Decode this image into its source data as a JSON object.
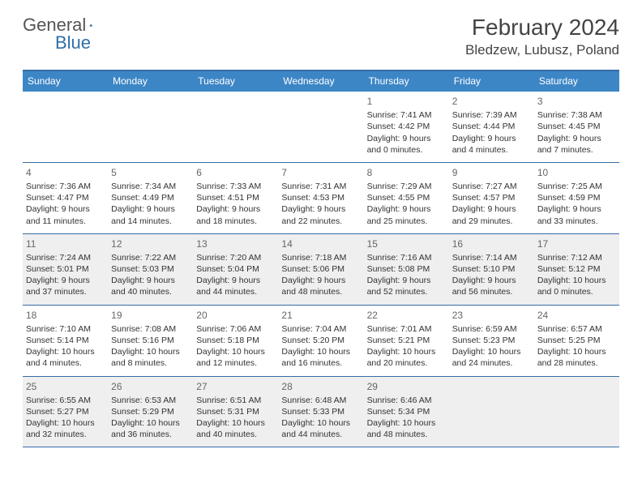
{
  "logo": {
    "text1": "General",
    "text2": "Blue"
  },
  "header": {
    "month": "February 2024",
    "location": "Bledzew, Lubusz, Poland"
  },
  "colors": {
    "header_bg": "#3d86c6",
    "header_border": "#346da6",
    "shaded_bg": "#efefef",
    "logo_blue": "#2f6fa8",
    "text": "#333333"
  },
  "dow": [
    "Sunday",
    "Monday",
    "Tuesday",
    "Wednesday",
    "Thursday",
    "Friday",
    "Saturday"
  ],
  "weeks": [
    [
      {
        "empty": true
      },
      {
        "empty": true
      },
      {
        "empty": true
      },
      {
        "empty": true
      },
      {
        "num": "1",
        "sunrise": "Sunrise: 7:41 AM",
        "sunset": "Sunset: 4:42 PM",
        "daylight": "Daylight: 9 hours and 0 minutes."
      },
      {
        "num": "2",
        "sunrise": "Sunrise: 7:39 AM",
        "sunset": "Sunset: 4:44 PM",
        "daylight": "Daylight: 9 hours and 4 minutes."
      },
      {
        "num": "3",
        "sunrise": "Sunrise: 7:38 AM",
        "sunset": "Sunset: 4:45 PM",
        "daylight": "Daylight: 9 hours and 7 minutes."
      }
    ],
    [
      {
        "num": "4",
        "sunrise": "Sunrise: 7:36 AM",
        "sunset": "Sunset: 4:47 PM",
        "daylight": "Daylight: 9 hours and 11 minutes."
      },
      {
        "num": "5",
        "sunrise": "Sunrise: 7:34 AM",
        "sunset": "Sunset: 4:49 PM",
        "daylight": "Daylight: 9 hours and 14 minutes."
      },
      {
        "num": "6",
        "sunrise": "Sunrise: 7:33 AM",
        "sunset": "Sunset: 4:51 PM",
        "daylight": "Daylight: 9 hours and 18 minutes."
      },
      {
        "num": "7",
        "sunrise": "Sunrise: 7:31 AM",
        "sunset": "Sunset: 4:53 PM",
        "daylight": "Daylight: 9 hours and 22 minutes."
      },
      {
        "num": "8",
        "sunrise": "Sunrise: 7:29 AM",
        "sunset": "Sunset: 4:55 PM",
        "daylight": "Daylight: 9 hours and 25 minutes."
      },
      {
        "num": "9",
        "sunrise": "Sunrise: 7:27 AM",
        "sunset": "Sunset: 4:57 PM",
        "daylight": "Daylight: 9 hours and 29 minutes."
      },
      {
        "num": "10",
        "sunrise": "Sunrise: 7:25 AM",
        "sunset": "Sunset: 4:59 PM",
        "daylight": "Daylight: 9 hours and 33 minutes."
      }
    ],
    [
      {
        "num": "11",
        "sunrise": "Sunrise: 7:24 AM",
        "sunset": "Sunset: 5:01 PM",
        "daylight": "Daylight: 9 hours and 37 minutes.",
        "shaded": true
      },
      {
        "num": "12",
        "sunrise": "Sunrise: 7:22 AM",
        "sunset": "Sunset: 5:03 PM",
        "daylight": "Daylight: 9 hours and 40 minutes.",
        "shaded": true
      },
      {
        "num": "13",
        "sunrise": "Sunrise: 7:20 AM",
        "sunset": "Sunset: 5:04 PM",
        "daylight": "Daylight: 9 hours and 44 minutes.",
        "shaded": true
      },
      {
        "num": "14",
        "sunrise": "Sunrise: 7:18 AM",
        "sunset": "Sunset: 5:06 PM",
        "daylight": "Daylight: 9 hours and 48 minutes.",
        "shaded": true
      },
      {
        "num": "15",
        "sunrise": "Sunrise: 7:16 AM",
        "sunset": "Sunset: 5:08 PM",
        "daylight": "Daylight: 9 hours and 52 minutes.",
        "shaded": true
      },
      {
        "num": "16",
        "sunrise": "Sunrise: 7:14 AM",
        "sunset": "Sunset: 5:10 PM",
        "daylight": "Daylight: 9 hours and 56 minutes.",
        "shaded": true
      },
      {
        "num": "17",
        "sunrise": "Sunrise: 7:12 AM",
        "sunset": "Sunset: 5:12 PM",
        "daylight": "Daylight: 10 hours and 0 minutes.",
        "shaded": true
      }
    ],
    [
      {
        "num": "18",
        "sunrise": "Sunrise: 7:10 AM",
        "sunset": "Sunset: 5:14 PM",
        "daylight": "Daylight: 10 hours and 4 minutes."
      },
      {
        "num": "19",
        "sunrise": "Sunrise: 7:08 AM",
        "sunset": "Sunset: 5:16 PM",
        "daylight": "Daylight: 10 hours and 8 minutes."
      },
      {
        "num": "20",
        "sunrise": "Sunrise: 7:06 AM",
        "sunset": "Sunset: 5:18 PM",
        "daylight": "Daylight: 10 hours and 12 minutes."
      },
      {
        "num": "21",
        "sunrise": "Sunrise: 7:04 AM",
        "sunset": "Sunset: 5:20 PM",
        "daylight": "Daylight: 10 hours and 16 minutes."
      },
      {
        "num": "22",
        "sunrise": "Sunrise: 7:01 AM",
        "sunset": "Sunset: 5:21 PM",
        "daylight": "Daylight: 10 hours and 20 minutes."
      },
      {
        "num": "23",
        "sunrise": "Sunrise: 6:59 AM",
        "sunset": "Sunset: 5:23 PM",
        "daylight": "Daylight: 10 hours and 24 minutes."
      },
      {
        "num": "24",
        "sunrise": "Sunrise: 6:57 AM",
        "sunset": "Sunset: 5:25 PM",
        "daylight": "Daylight: 10 hours and 28 minutes."
      }
    ],
    [
      {
        "num": "25",
        "sunrise": "Sunrise: 6:55 AM",
        "sunset": "Sunset: 5:27 PM",
        "daylight": "Daylight: 10 hours and 32 minutes.",
        "shaded": true
      },
      {
        "num": "26",
        "sunrise": "Sunrise: 6:53 AM",
        "sunset": "Sunset: 5:29 PM",
        "daylight": "Daylight: 10 hours and 36 minutes.",
        "shaded": true
      },
      {
        "num": "27",
        "sunrise": "Sunrise: 6:51 AM",
        "sunset": "Sunset: 5:31 PM",
        "daylight": "Daylight: 10 hours and 40 minutes.",
        "shaded": true
      },
      {
        "num": "28",
        "sunrise": "Sunrise: 6:48 AM",
        "sunset": "Sunset: 5:33 PM",
        "daylight": "Daylight: 10 hours and 44 minutes.",
        "shaded": true
      },
      {
        "num": "29",
        "sunrise": "Sunrise: 6:46 AM",
        "sunset": "Sunset: 5:34 PM",
        "daylight": "Daylight: 10 hours and 48 minutes.",
        "shaded": true
      },
      {
        "empty": true,
        "shaded": true
      },
      {
        "empty": true,
        "shaded": true
      }
    ]
  ]
}
